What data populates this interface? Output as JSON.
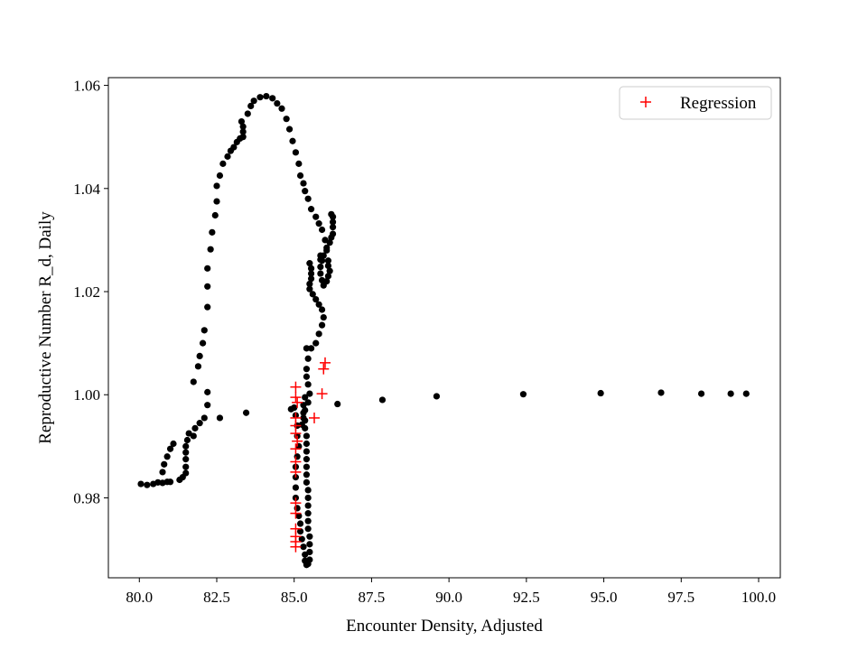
{
  "chart_data": {
    "type": "scatter",
    "title": "",
    "xlabel": "Encounter Density, Adjusted",
    "ylabel": "Reproductive Number R_d, Daily",
    "xlim": [
      79.0,
      100.7
    ],
    "ylim": [
      0.9645,
      1.0615
    ],
    "xticks": [
      80.0,
      82.5,
      85.0,
      87.5,
      90.0,
      92.5,
      95.0,
      97.5,
      100.0
    ],
    "xtick_labels": [
      "80.0",
      "82.5",
      "85.0",
      "87.5",
      "90.0",
      "92.5",
      "95.0",
      "97.5",
      "100.0"
    ],
    "yticks": [
      0.98,
      1.0,
      1.02,
      1.04,
      1.06
    ],
    "ytick_labels": [
      "0.98",
      "1.00",
      "1.02",
      "1.04",
      "1.06"
    ],
    "grid": false,
    "legend_position": "top-right",
    "series": [
      {
        "marker": "dot",
        "color": "#000000",
        "points": [
          [
            80.05,
            0.9827
          ],
          [
            80.25,
            0.9825
          ],
          [
            80.45,
            0.9827
          ],
          [
            80.6,
            0.983
          ],
          [
            80.75,
            0.9829
          ],
          [
            80.9,
            0.9831
          ],
          [
            81.0,
            0.9831
          ],
          [
            80.75,
            0.985
          ],
          [
            80.8,
            0.9865
          ],
          [
            80.9,
            0.988
          ],
          [
            81.0,
            0.9895
          ],
          [
            81.1,
            0.9905
          ],
          [
            81.3,
            0.9835
          ],
          [
            81.4,
            0.984
          ],
          [
            81.5,
            0.9848
          ],
          [
            81.5,
            0.986
          ],
          [
            81.5,
            0.9875
          ],
          [
            81.5,
            0.9888
          ],
          [
            81.5,
            0.99
          ],
          [
            81.55,
            0.9912
          ],
          [
            81.6,
            0.9925
          ],
          [
            81.75,
            0.992
          ],
          [
            81.8,
            0.9935
          ],
          [
            81.95,
            0.9945
          ],
          [
            82.1,
            0.9955
          ],
          [
            82.2,
            0.998
          ],
          [
            82.2,
            1.0005
          ],
          [
            81.75,
            1.0025
          ],
          [
            81.9,
            1.0055
          ],
          [
            81.95,
            1.0075
          ],
          [
            82.05,
            1.01
          ],
          [
            82.1,
            1.0125
          ],
          [
            82.2,
            1.017
          ],
          [
            82.2,
            1.021
          ],
          [
            82.2,
            1.0245
          ],
          [
            82.3,
            1.0282
          ],
          [
            82.35,
            1.0315
          ],
          [
            82.45,
            1.0348
          ],
          [
            82.5,
            1.0375
          ],
          [
            82.5,
            1.0405
          ],
          [
            82.6,
            1.0425
          ],
          [
            82.7,
            1.0448
          ],
          [
            82.85,
            1.0462
          ],
          [
            82.95,
            1.0473
          ],
          [
            83.05,
            1.048
          ],
          [
            83.15,
            1.049
          ],
          [
            83.25,
            1.0497
          ],
          [
            83.35,
            1.05
          ],
          [
            83.35,
            1.051
          ],
          [
            83.3,
            1.053
          ],
          [
            83.35,
            1.052
          ],
          [
            83.5,
            1.0545
          ],
          [
            83.6,
            1.056
          ],
          [
            83.7,
            1.057
          ],
          [
            83.9,
            1.0577
          ],
          [
            84.1,
            1.0579
          ],
          [
            84.3,
            1.0575
          ],
          [
            84.45,
            1.0565
          ],
          [
            84.6,
            1.0555
          ],
          [
            84.75,
            1.0535
          ],
          [
            84.85,
            1.0515
          ],
          [
            84.95,
            1.0492
          ],
          [
            85.05,
            1.047
          ],
          [
            85.15,
            1.0448
          ],
          [
            85.2,
            1.0425
          ],
          [
            85.3,
            1.041
          ],
          [
            85.35,
            1.0395
          ],
          [
            85.45,
            1.038
          ],
          [
            85.55,
            1.036
          ],
          [
            85.7,
            1.0345
          ],
          [
            85.8,
            1.0332
          ],
          [
            85.9,
            1.032
          ],
          [
            86.0,
            1.03
          ],
          [
            86.05,
            1.028
          ],
          [
            86.1,
            1.026
          ],
          [
            86.2,
            1.035
          ],
          [
            86.25,
            1.0345
          ],
          [
            86.25,
            1.0335
          ],
          [
            86.25,
            1.0325
          ],
          [
            86.25,
            1.0312
          ],
          [
            86.2,
            1.0305
          ],
          [
            86.15,
            1.0295
          ],
          [
            86.05,
            1.0285
          ],
          [
            85.95,
            1.027
          ],
          [
            85.9,
            1.026
          ],
          [
            86.1,
            1.025
          ],
          [
            86.15,
            1.024
          ],
          [
            86.1,
            1.023
          ],
          [
            86.05,
            1.022
          ],
          [
            85.95,
            1.0212
          ],
          [
            85.9,
            1.0222
          ],
          [
            85.85,
            1.0235
          ],
          [
            85.85,
            1.0248
          ],
          [
            85.85,
            1.0262
          ],
          [
            85.85,
            1.027
          ],
          [
            85.5,
            1.0255
          ],
          [
            85.55,
            1.0245
          ],
          [
            85.55,
            1.0235
          ],
          [
            85.55,
            1.0225
          ],
          [
            85.5,
            1.0215
          ],
          [
            85.5,
            1.0205
          ],
          [
            85.6,
            1.0195
          ],
          [
            85.7,
            1.0185
          ],
          [
            85.8,
            1.0175
          ],
          [
            85.9,
            1.0165
          ],
          [
            85.95,
            1.015
          ],
          [
            85.9,
            1.0135
          ],
          [
            85.8,
            1.0118
          ],
          [
            85.7,
            1.01
          ],
          [
            85.55,
            1.009
          ],
          [
            85.4,
            1.009
          ],
          [
            85.45,
            1.007
          ],
          [
            85.4,
            1.005
          ],
          [
            85.4,
            1.0035
          ],
          [
            85.45,
            1.002
          ],
          [
            85.5,
            1.0002
          ],
          [
            85.45,
            0.9985
          ],
          [
            85.35,
            0.997
          ],
          [
            85.3,
            0.9955
          ],
          [
            85.25,
            0.9942
          ],
          [
            85.0,
            0.9975
          ],
          [
            84.9,
            0.9972
          ],
          [
            85.05,
            0.996
          ],
          [
            85.1,
            0.994
          ],
          [
            85.1,
            0.992
          ],
          [
            85.15,
            0.99
          ],
          [
            85.1,
            0.988
          ],
          [
            85.05,
            0.986
          ],
          [
            85.05,
            0.984
          ],
          [
            85.05,
            0.982
          ],
          [
            85.05,
            0.98
          ],
          [
            85.1,
            0.978
          ],
          [
            85.15,
            0.9765
          ],
          [
            85.2,
            0.975
          ],
          [
            85.2,
            0.9735
          ],
          [
            85.25,
            0.972
          ],
          [
            85.3,
            0.9705
          ],
          [
            85.35,
            0.969
          ],
          [
            85.35,
            0.9678
          ],
          [
            85.4,
            0.967
          ],
          [
            85.45,
            0.9672
          ],
          [
            85.5,
            0.968
          ],
          [
            85.5,
            0.9695
          ],
          [
            85.5,
            0.971
          ],
          [
            85.5,
            0.9725
          ],
          [
            85.45,
            0.974
          ],
          [
            85.45,
            0.9755
          ],
          [
            85.45,
            0.977
          ],
          [
            85.45,
            0.9785
          ],
          [
            85.45,
            0.98
          ],
          [
            85.45,
            0.9815
          ],
          [
            85.4,
            0.983
          ],
          [
            85.4,
            0.9845
          ],
          [
            85.4,
            0.986
          ],
          [
            85.4,
            0.9875
          ],
          [
            85.4,
            0.989
          ],
          [
            85.4,
            0.9905
          ],
          [
            85.4,
            0.992
          ],
          [
            85.35,
            0.9935
          ],
          [
            85.35,
            0.995
          ],
          [
            85.3,
            0.9965
          ],
          [
            85.3,
            0.998
          ],
          [
            85.35,
            0.9995
          ],
          [
            82.6,
            0.9955
          ],
          [
            83.45,
            0.9965
          ],
          [
            86.4,
            0.9982
          ],
          [
            87.85,
            0.999
          ],
          [
            89.6,
            0.9997
          ],
          [
            92.4,
            1.0001
          ],
          [
            94.9,
            1.0003
          ],
          [
            96.85,
            1.0004
          ],
          [
            98.15,
            1.0002
          ],
          [
            99.1,
            1.0002
          ],
          [
            99.6,
            1.0002
          ]
        ]
      },
      {
        "name": "Regression",
        "marker": "plus",
        "color": "#ff0000",
        "points": [
          [
            85.05,
            1.0015
          ],
          [
            85.05,
            0.9995
          ],
          [
            85.1,
            0.9985
          ],
          [
            85.05,
            0.9955
          ],
          [
            85.05,
            0.994
          ],
          [
            85.05,
            0.9925
          ],
          [
            85.1,
            0.991
          ],
          [
            85.05,
            0.9895
          ],
          [
            85.05,
            0.987
          ],
          [
            85.05,
            0.985
          ],
          [
            85.05,
            0.979
          ],
          [
            85.05,
            0.977
          ],
          [
            85.05,
            0.974
          ],
          [
            85.05,
            0.9725
          ],
          [
            85.05,
            0.9715
          ],
          [
            85.05,
            0.9705
          ],
          [
            85.65,
            0.9955
          ],
          [
            85.9,
            1.0002
          ],
          [
            85.95,
            1.005
          ],
          [
            86.0,
            1.0062
          ]
        ]
      }
    ]
  }
}
